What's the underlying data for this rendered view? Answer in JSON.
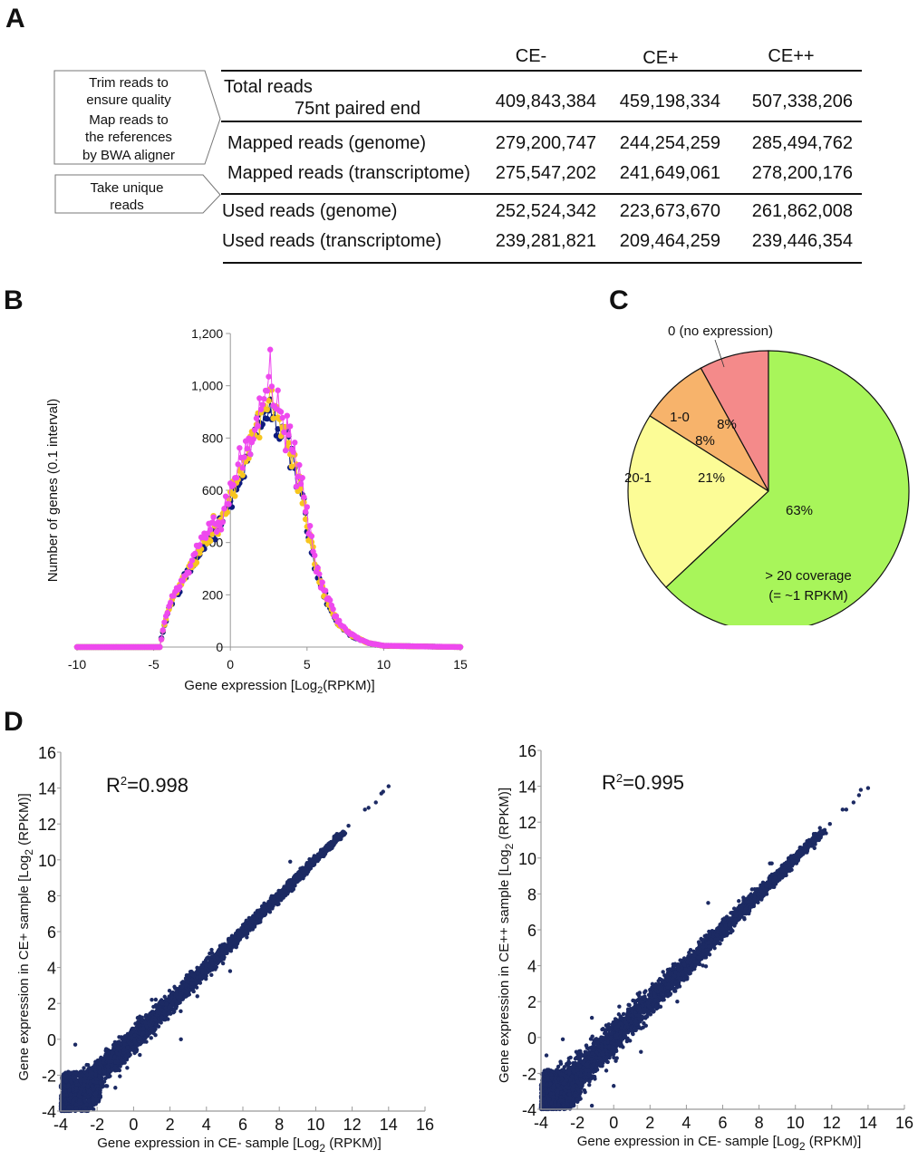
{
  "panels": {
    "A": "A",
    "B": "B",
    "C": "C",
    "D": "D"
  },
  "table": {
    "columns": [
      "CE-",
      "CE+",
      "CE++"
    ],
    "steps": [
      {
        "lines": [
          "Trim reads to",
          "ensure quality",
          "Map reads to",
          "the references",
          "by BWA aligner"
        ]
      },
      {
        "lines": [
          "Take unique",
          "reads"
        ]
      }
    ],
    "rows": [
      {
        "label": "Total reads",
        "sublabel": "75nt paired end",
        "values": [
          "409,843,384",
          "459,198,334",
          "507,338,206"
        ]
      },
      {
        "label": "Mapped reads (genome)",
        "values": [
          "279,200,747",
          "244,254,259",
          "285,494,762"
        ]
      },
      {
        "label": "Mapped reads (transcriptome)",
        "values": [
          "275,547,202",
          "241,649,061",
          "278,200,176"
        ]
      },
      {
        "label": "Used reads (genome)",
        "values": [
          "252,524,342",
          "223,673,670",
          "261,862,008"
        ]
      },
      {
        "label": "Used reads (transcriptome)",
        "values": [
          "239,281,821",
          "209,464,259",
          "239,446,354"
        ]
      }
    ]
  },
  "chart_data": [
    {
      "panel": "B",
      "type": "line",
      "title": "",
      "xlabel": "Gene expression [Log2 (RPKM)]",
      "xlabel_main": "Gene expression [Log",
      "xlabel_sub": "2",
      "xlabel_end": "(RPKM)]",
      "ylabel": "Number of genes (0.1 interval)",
      "xlim": [
        -10,
        15
      ],
      "ylim": [
        0,
        1200
      ],
      "xticks": [
        -10,
        -5,
        0,
        5,
        10,
        15
      ],
      "xtick_labels": [
        "-10",
        "-5",
        "0",
        "5",
        "10",
        "15"
      ],
      "yticks": [
        0,
        200,
        400,
        600,
        800,
        1000,
        1200
      ],
      "ytick_labels": [
        "0",
        "200",
        "400",
        "600",
        "800",
        "1,000",
        "1,200"
      ],
      "series": [
        {
          "name": "CE-",
          "color": "#0d1b7e",
          "peak_x": 2.6,
          "peak_y": 960
        },
        {
          "name": "CE+",
          "color": "#f7c51e",
          "peak_x": 2.6,
          "peak_y": 980
        },
        {
          "name": "CE++",
          "color": "#ee49ee",
          "peak_x": 2.6,
          "peak_y": 1020
        }
      ],
      "shape": {
        "x": [
          -10,
          -4.6,
          -4.4,
          -4,
          -3,
          -2,
          -1,
          -0.3,
          0,
          1,
          2,
          2.6,
          3,
          4,
          4.5,
          5,
          5.5,
          6,
          7,
          8,
          9,
          10,
          15
        ],
        "y": [
          0,
          0,
          60,
          150,
          260,
          360,
          450,
          500,
          580,
          680,
          870,
          960,
          880,
          720,
          620,
          480,
          320,
          220,
          90,
          40,
          15,
          5,
          0
        ]
      },
      "grid": false,
      "legend": "none"
    },
    {
      "panel": "C",
      "type": "pie",
      "categories": [
        "0 (no expression)",
        "1-0",
        "20-1",
        "> 20 coverage (= ~1 RPKM)"
      ],
      "values": [
        8,
        8,
        21,
        63
      ],
      "labels": [
        "8%",
        "8%",
        "21%",
        "63%"
      ],
      "category_labels": [
        "0 (no expression)",
        "1-0",
        "20-1",
        "> 20 coverage",
        "(= ~1  RPKM)"
      ],
      "colors": [
        "#f48a8a",
        "#f7b36b",
        "#fcfc96",
        "#a8f55a"
      ]
    },
    {
      "panel": "D-left",
      "type": "scatter",
      "annotation": "R²=0.998",
      "annotation_base": "R",
      "annotation_sup": "2",
      "annotation_rest": "=0.998",
      "xlabel": "Gene expression in CE- sample [Log2 (RPKM)]",
      "xlabel_main": "Gene expression in CE- sample [Log",
      "xlabel_sub": "2",
      "xlabel_end": "(RPKM)]",
      "ylabel": "Gene expression in CE+ sample [Log2 (RPKM)]",
      "ylabel_main": "Gene expression in CE+ sample [Log",
      "ylabel_sub": "2",
      "ylabel_end": "(RPKM)]",
      "xlim": [
        -4,
        16
      ],
      "ylim": [
        -4,
        16
      ],
      "ticks": [
        -4,
        -2,
        0,
        2,
        4,
        6,
        8,
        10,
        12,
        14,
        16
      ],
      "tick_labels": [
        "-4",
        "-2",
        "0",
        "2",
        "4",
        "6",
        "8",
        "10",
        "12",
        "14",
        "16"
      ],
      "r_squared": 0.998,
      "color": "#1c2a63",
      "spread": 0.35,
      "outliers": [
        [
          8.6,
          9.9
        ],
        [
          -3.2,
          -0.3
        ],
        [
          2.6,
          0.0
        ],
        [
          3.5,
          2.4
        ],
        [
          1.0,
          2.2
        ],
        [
          5.3,
          3.8
        ],
        [
          11.8,
          11.9
        ],
        [
          12.7,
          12.8
        ],
        [
          13.3,
          13.2
        ],
        [
          13.7,
          13.8
        ],
        [
          14.0,
          14.1
        ],
        [
          12.9,
          12.9
        ],
        [
          13.6,
          13.7
        ],
        [
          10.6,
          10.8
        ],
        [
          11.0,
          11.1
        ],
        [
          -1.0,
          -2.7
        ],
        [
          -2.2,
          -3.9
        ]
      ]
    },
    {
      "panel": "D-right",
      "type": "scatter",
      "annotation": "R²=0.995",
      "annotation_base": "R",
      "annotation_sup": "2",
      "annotation_rest": "=0.995",
      "xlabel": "Gene expression in CE- sample [Log2 (RPKM)]",
      "xlabel_main": "Gene expression in CE- sample [Log",
      "xlabel_sub": "2",
      "xlabel_end": "(RPKM)]",
      "ylabel": "Gene expression in CE++ sample [Log2 (RPKM)]",
      "ylabel_main": "Gene expression in CE++ sample [Log",
      "ylabel_sub": "2",
      "ylabel_end": "(RPKM)]",
      "xlim": [
        -4,
        16
      ],
      "ylim": [
        -4,
        16
      ],
      "ticks": [
        -4,
        -2,
        0,
        2,
        4,
        6,
        8,
        10,
        12,
        14,
        16
      ],
      "tick_labels": [
        "-4",
        "-2",
        "0",
        "2",
        "4",
        "6",
        "8",
        "10",
        "12",
        "14",
        "16"
      ],
      "r_squared": 0.995,
      "color": "#1c2a63",
      "spread": 0.45,
      "outliers": [
        [
          5.2,
          7.5
        ],
        [
          8.6,
          9.7
        ],
        [
          8.7,
          9.7
        ],
        [
          -2.8,
          -0.1
        ],
        [
          -1.2,
          1.1
        ],
        [
          3.5,
          2.0
        ],
        [
          1.5,
          -0.8
        ],
        [
          0.0,
          -2.7
        ],
        [
          11.9,
          11.9
        ],
        [
          12.6,
          12.7
        ],
        [
          12.8,
          12.7
        ],
        [
          13.2,
          13.1
        ],
        [
          13.5,
          13.5
        ],
        [
          13.6,
          13.8
        ],
        [
          14.0,
          13.9
        ],
        [
          11.1,
          11.3
        ],
        [
          11.3,
          11.0
        ],
        [
          -3.7,
          -1.0
        ],
        [
          -1.2,
          -3.8
        ]
      ]
    }
  ]
}
